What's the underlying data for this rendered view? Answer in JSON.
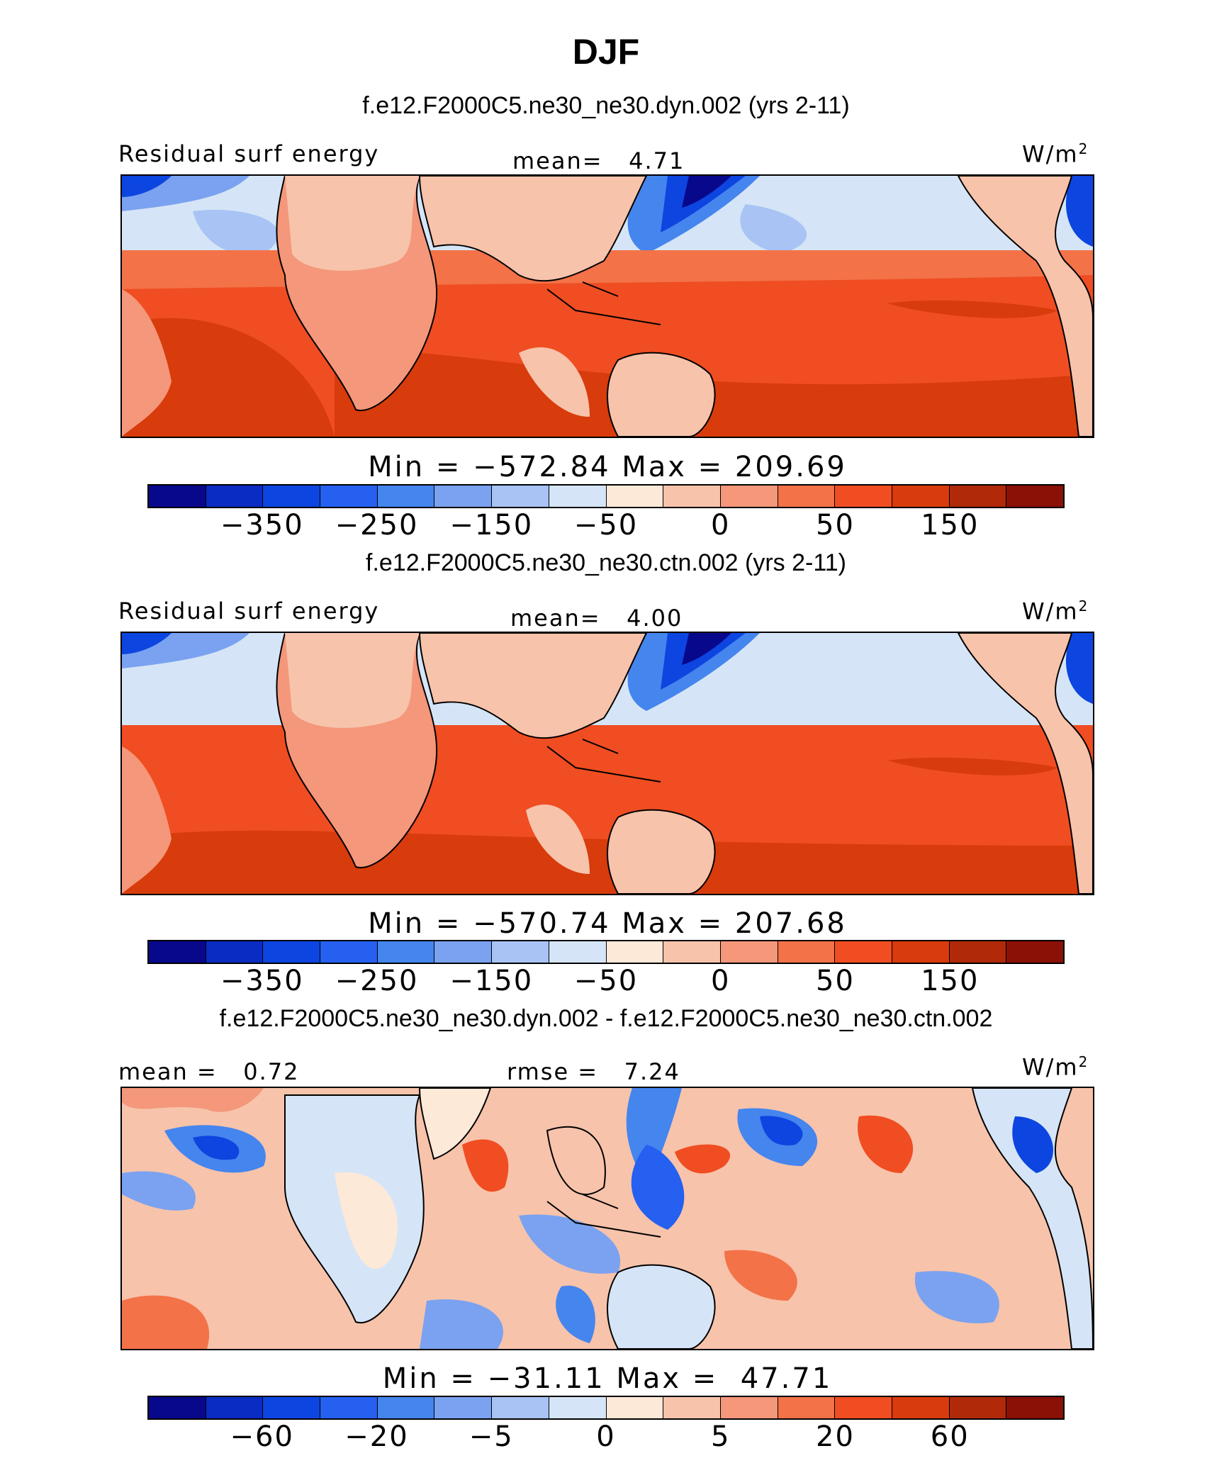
{
  "title": "DJF",
  "palette": {
    "abs": [
      "#08088c",
      "#0a2cc2",
      "#0d45e0",
      "#2560f0",
      "#4585ee",
      "#7aa2f0",
      "#a8c3f4",
      "#d5e5f7",
      "#fde9d8",
      "#f7c3ab",
      "#f4977a",
      "#f37248",
      "#f04d22",
      "#d83b0c",
      "#b02a0a",
      "#8b1006"
    ],
    "diff": [
      "#08088c",
      "#0a2cc2",
      "#0d45e0",
      "#2560f0",
      "#4585ee",
      "#7aa2f0",
      "#a8c3f4",
      "#d5e5f7",
      "#fde9d8",
      "#f7c3ab",
      "#f4977a",
      "#f37248",
      "#f04d22",
      "#d83b0c",
      "#b02a0a",
      "#8b1006"
    ]
  },
  "panels": [
    {
      "subtitle": "f.e12.F2000C5.ne30_ne30.dyn.002 (yrs 2-11)",
      "left_label": "Residual surf energy",
      "center_label": "mean=   4.71",
      "units": "W/m",
      "units_exp": "2",
      "minmax": "Min = −572.84 Max = 209.69",
      "ticks": [
        "−350",
        "−250",
        "−150",
        "−50",
        "0",
        "50",
        "150"
      ]
    },
    {
      "subtitle": "f.e12.F2000C5.ne30_ne30.ctn.002 (yrs 2-11)",
      "left_label": "Residual surf energy",
      "center_label": "mean=   4.00",
      "units": "W/m",
      "units_exp": "2",
      "minmax": "Min = −570.74 Max = 207.68",
      "ticks": [
        "−350",
        "−250",
        "−150",
        "−50",
        "0",
        "50",
        "150"
      ]
    },
    {
      "subtitle": "f.e12.F2000C5.ne30_ne30.dyn.002 - f.e12.F2000C5.ne30_ne30.ctn.002",
      "left_label": "mean =   0.72",
      "center_label": "rmse =   7.24",
      "units": "W/m",
      "units_exp": "2",
      "minmax": "Min = −31.11 Max =  47.71",
      "ticks": [
        "−60",
        "−20",
        "−5",
        "0",
        "5",
        "20",
        "60"
      ]
    }
  ]
}
